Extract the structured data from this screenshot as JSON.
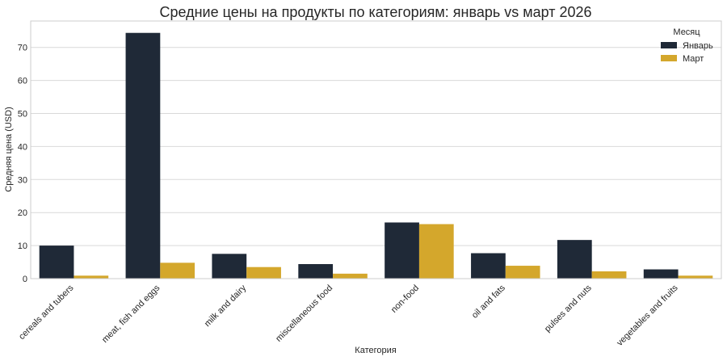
{
  "chart_data": {
    "type": "bar",
    "title": "Средние цены на продукты по категориям: январь vs март 2026",
    "xlabel": "Категория",
    "ylabel": "Средняя цена (USD)",
    "categories": [
      "cereals and tubers",
      "meat, fish and eggs",
      "milk and dairy",
      "miscellaneous food",
      "non-food",
      "oil and fats",
      "pulses and nuts",
      "vegetables and fruits"
    ],
    "series": [
      {
        "name": "Январь",
        "color": "#1f2937",
        "values": [
          10.0,
          74.4,
          7.5,
          4.4,
          17.0,
          7.7,
          11.7,
          2.8
        ]
      },
      {
        "name": "Март",
        "color": "#d4a72c",
        "values": [
          0.9,
          4.8,
          3.5,
          1.5,
          16.5,
          3.9,
          2.2,
          0.9
        ]
      }
    ],
    "ylim": [
      0,
      78
    ],
    "yticks": [
      0,
      10,
      20,
      30,
      40,
      50,
      60,
      70
    ],
    "grid": true,
    "legend": {
      "title": "Месяц",
      "placement": "top-right"
    }
  }
}
